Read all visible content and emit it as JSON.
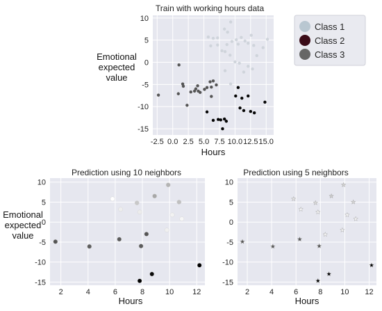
{
  "chart_data": [
    {
      "type": "scatter",
      "title": "Train with working hours data",
      "xlabel": "Hours",
      "ylabel": [
        "Emotional",
        "expected",
        "value"
      ],
      "xlim": [
        -3.2,
        16.2
      ],
      "ylim": [
        -16.4,
        10.6
      ],
      "xticks": [
        -2.5,
        0,
        2.5,
        5,
        7.5,
        10,
        12.5,
        15
      ],
      "xtick_labels": [
        "-2.5",
        "0.0",
        "2.5",
        "5.0",
        "7.5",
        "10.0",
        "12.5",
        "15.0"
      ],
      "yticks": [
        10,
        5,
        0,
        -5,
        -10,
        -15
      ],
      "ytick_labels": [
        "10",
        "5",
        "0",
        "-5",
        "-10",
        "-15"
      ],
      "grid": true,
      "legend_position": "top-right",
      "series": [
        {
          "name": "Class 1",
          "color": "#cfd4db",
          "points": [
            [
              5.7,
              5.7
            ],
            [
              6.5,
              5.4
            ],
            [
              7.2,
              5.5
            ],
            [
              8.3,
              7.5
            ],
            [
              8.8,
              6.8
            ],
            [
              9.3,
              9.1
            ],
            [
              6.1,
              3.7
            ],
            [
              7.2,
              3.9
            ],
            [
              7.9,
              2.6
            ],
            [
              8.4,
              2.4
            ],
            [
              8.7,
              4.0
            ],
            [
              9.5,
              4.7
            ],
            [
              10.2,
              5.1
            ],
            [
              10.5,
              4.1
            ],
            [
              11.0,
              5.6
            ],
            [
              11.6,
              4.8
            ],
            [
              12.1,
              4.3
            ],
            [
              12.6,
              6.1
            ],
            [
              13.0,
              3.8
            ],
            [
              13.5,
              1.5
            ],
            [
              14.5,
              3.3
            ],
            [
              15.2,
              5.2
            ],
            [
              9.2,
              1.6
            ],
            [
              10.0,
              0.1
            ],
            [
              10.7,
              -0.2
            ],
            [
              12.1,
              -0.9
            ],
            [
              12.8,
              -1.5
            ],
            [
              11.4,
              -2.2
            ],
            [
              9.3,
              -4.9
            ],
            [
              8.4,
              -1.9
            ]
          ]
        },
        {
          "name": "Class 2",
          "color": "#050505",
          "points": [
            [
              5.5,
              -11.2
            ],
            [
              6.5,
              -13.1
            ],
            [
              7.3,
              -12.9
            ],
            [
              7.7,
              -13.0
            ],
            [
              8.3,
              -12.8
            ],
            [
              8.0,
              -15.0
            ],
            [
              8.6,
              -13.3
            ],
            [
              10.1,
              -7.6
            ],
            [
              10.5,
              -5.7
            ],
            [
              11.1,
              -8.1
            ],
            [
              10.8,
              -10.3
            ],
            [
              11.4,
              -10.9
            ],
            [
              12.1,
              -7.6
            ],
            [
              12.5,
              -11.1
            ],
            [
              13.1,
              -11.4
            ],
            [
              14.8,
              -9.0
            ]
          ]
        },
        {
          "name": "Class 3",
          "color": "#555555",
          "points": [
            [
              -2.3,
              -7.4
            ],
            [
              1.0,
              -0.6
            ],
            [
              0.9,
              -7.1
            ],
            [
              1.6,
              -4.9
            ],
            [
              1.7,
              -5.4
            ],
            [
              2.3,
              -9.7
            ],
            [
              2.9,
              -6.7
            ],
            [
              3.5,
              -6.5
            ],
            [
              3.7,
              -6.0
            ],
            [
              4.0,
              -5.3
            ],
            [
              4.1,
              -6.5
            ],
            [
              4.4,
              -6.8
            ],
            [
              5.1,
              -6.1
            ],
            [
              5.5,
              -5.7
            ],
            [
              6.0,
              -4.4
            ],
            [
              6.2,
              -5.6
            ],
            [
              6.5,
              -4.2
            ],
            [
              7.0,
              -5.1
            ],
            [
              6.2,
              -7.7
            ]
          ]
        }
      ]
    },
    {
      "type": "scatter",
      "title": "Prediction using 10 neighbors",
      "xlabel": "Hours",
      "ylabel": [
        "Emotional",
        "expected",
        "value"
      ],
      "xlim": [
        1.2,
        12.6
      ],
      "ylim": [
        -15.8,
        11.0
      ],
      "xticks": [
        2,
        4,
        6,
        8,
        10,
        12
      ],
      "xtick_labels": [
        "2",
        "4",
        "6",
        "8",
        "10",
        "12"
      ],
      "yticks": [
        10,
        5,
        0,
        -5,
        -10,
        -15
      ],
      "ytick_labels": [
        "10",
        "5",
        "0",
        "-5",
        "-10",
        "-15"
      ],
      "grid": true,
      "marker": "circle",
      "points": [
        {
          "x": 5.8,
          "y": 5.8,
          "color": "#ffffff"
        },
        {
          "x": 6.4,
          "y": 3.2,
          "color": "#eeeeee"
        },
        {
          "x": 7.6,
          "y": 4.8,
          "color": "#c8c8c8"
        },
        {
          "x": 7.8,
          "y": 2.5,
          "color": "#ececec"
        },
        {
          "x": 8.9,
          "y": 6.5,
          "color": "#a8a8a8"
        },
        {
          "x": 9.9,
          "y": 9.3,
          "color": "#b4b4b4"
        },
        {
          "x": 10.2,
          "y": 1.8,
          "color": "#f2f2f2"
        },
        {
          "x": 10.7,
          "y": 5.0,
          "color": "#c0c0c0"
        },
        {
          "x": 10.9,
          "y": 0.8,
          "color": "#f6f6f6"
        },
        {
          "x": 9.8,
          "y": -2.0,
          "color": "#f0f0f0"
        },
        {
          "x": 1.6,
          "y": -4.9,
          "color": "#555555"
        },
        {
          "x": 4.1,
          "y": -6.1,
          "color": "#5e5e5e"
        },
        {
          "x": 6.3,
          "y": -4.3,
          "color": "#5a5a5a"
        },
        {
          "x": 8.3,
          "y": -3.0,
          "color": "#555555"
        },
        {
          "x": 7.9,
          "y": -6.0,
          "color": "#5c5c5c"
        },
        {
          "x": 8.7,
          "y": -13.0,
          "color": "#0a0a0a"
        },
        {
          "x": 7.8,
          "y": -14.7,
          "color": "#000000"
        },
        {
          "x": 12.2,
          "y": -10.8,
          "color": "#000000"
        }
      ]
    },
    {
      "type": "scatter",
      "title": "Prediction using 5 neighbors",
      "xlabel": "Hours",
      "xlim": [
        1.2,
        12.6
      ],
      "ylim": [
        -15.8,
        11.0
      ],
      "xticks": [
        2,
        4,
        6,
        8,
        10,
        12
      ],
      "xtick_labels": [
        "2",
        "4",
        "6",
        "8",
        "10",
        "12"
      ],
      "yticks": [
        10,
        5,
        0,
        -5,
        -10,
        -15
      ],
      "ytick_labels": [
        "10",
        "5",
        "0",
        "-5",
        "-10",
        "-15"
      ],
      "grid": true,
      "marker": "star",
      "points": [
        {
          "x": 5.8,
          "y": 5.8,
          "color": "#e3e3e3"
        },
        {
          "x": 6.4,
          "y": 3.2,
          "color": "#f6f6f6"
        },
        {
          "x": 7.6,
          "y": 4.8,
          "color": "#d9d9d9"
        },
        {
          "x": 7.8,
          "y": 2.5,
          "color": "#f1f1f1"
        },
        {
          "x": 8.9,
          "y": 6.5,
          "color": "#cccccc"
        },
        {
          "x": 9.9,
          "y": 9.3,
          "color": "#d0d0d0"
        },
        {
          "x": 10.2,
          "y": 1.8,
          "color": "#f6f6f6"
        },
        {
          "x": 10.7,
          "y": 5.0,
          "color": "#d5d5d5"
        },
        {
          "x": 10.9,
          "y": 0.8,
          "color": "#f4f4f4"
        },
        {
          "x": 9.8,
          "y": -2.0,
          "color": "#f0f0f0"
        },
        {
          "x": 8.4,
          "y": -3.1,
          "color": "#f4f4f4"
        },
        {
          "x": 1.6,
          "y": -4.9,
          "color": "#555555"
        },
        {
          "x": 4.1,
          "y": -6.1,
          "color": "#555555"
        },
        {
          "x": 6.3,
          "y": -4.3,
          "color": "#555555"
        },
        {
          "x": 7.9,
          "y": -6.0,
          "color": "#555555"
        },
        {
          "x": 8.7,
          "y": -13.0,
          "color": "#000000"
        },
        {
          "x": 7.8,
          "y": -14.7,
          "color": "#000000"
        },
        {
          "x": 12.2,
          "y": -10.8,
          "color": "#000000"
        }
      ]
    }
  ]
}
